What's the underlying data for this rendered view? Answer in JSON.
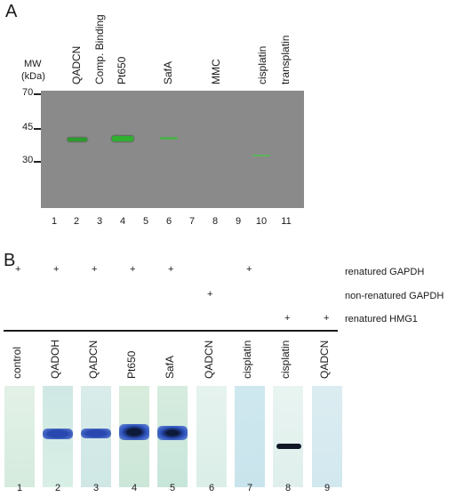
{
  "panel_a": {
    "letter": "A",
    "mw_label_1": "MW",
    "mw_label_2": "(kDa)",
    "mw_ticks": [
      "70",
      "45",
      "30"
    ],
    "lane_labels": [
      "QADCN",
      "Comp. Binding",
      "Pt650",
      "SafA",
      "MMC",
      "cisplatin",
      "transplatin"
    ],
    "lane_numbers": [
      "1",
      "2",
      "3",
      "4",
      "5",
      "6",
      "7",
      "8",
      "9",
      "10",
      "11"
    ],
    "colors": {
      "membrane": "#8a8a8a",
      "band": "#2fa82f"
    }
  },
  "panel_b": {
    "letter": "B",
    "conditions": [
      "renatured GAPDH",
      "non-renatured GAPDH",
      "renatured HMG1"
    ],
    "plus": "+",
    "lane_labels": [
      "control",
      "QADOH",
      "QADCN",
      "Pt650",
      "SafA",
      "QADCN",
      "cisplatin",
      "cisplatin",
      "QADCN"
    ],
    "lane_numbers": [
      "1",
      "2",
      "3",
      "4",
      "5",
      "6",
      "7",
      "8",
      "9"
    ],
    "colors": {
      "strip": "#d6ecea",
      "band": "#2a4fb8"
    }
  }
}
